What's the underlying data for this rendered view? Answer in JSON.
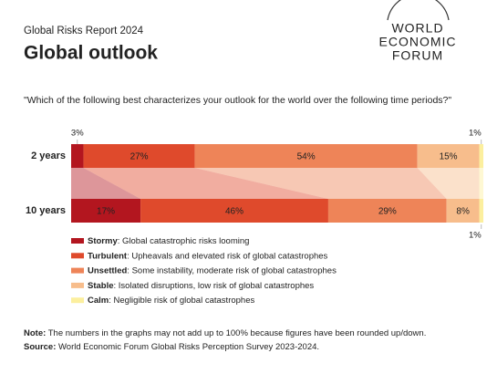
{
  "chart_data": {
    "type": "stacked-barh",
    "supertitle": "Global Risks Report 2024",
    "title": "Global outlook",
    "logo": [
      "WORLD",
      "ECONOMIC",
      "FORUM"
    ],
    "subtitle": "\"Which of the following best characterizes your outlook for the world over the following time periods?\"",
    "categories": [
      "2 years",
      "10 years"
    ],
    "series": [
      {
        "name": "Stormy",
        "description": ": Global catastrophic risks looming",
        "color": "#b3161f",
        "label_color": "#f2b6a6",
        "values": [
          3,
          17
        ],
        "value_labels": [
          "3%",
          "17%"
        ]
      },
      {
        "name": "Turbulent",
        "description": ": Upheavals and elevated risk of global catastrophes",
        "color": "#df4a2c",
        "label_color": "#f6c2ad",
        "values": [
          27,
          46
        ],
        "value_labels": [
          "27%",
          "46%"
        ]
      },
      {
        "name": "Unsettled",
        "description": ": Some instability, moderate risk of global catastrophes",
        "color": "#ee8458",
        "label_color": "#fbd6c2",
        "values": [
          54,
          29
        ],
        "value_labels": [
          "54%",
          "29%"
        ]
      },
      {
        "name": "Stable",
        "description": ": Isolated disruptions, low risk of global catastrophes",
        "color": "#f7bd8c",
        "label_color": "#555555",
        "values": [
          15,
          8
        ],
        "value_labels": [
          "15%",
          "8%"
        ]
      },
      {
        "name": "Calm",
        "description": ": Negligible risk of global catastrophes",
        "color": "#fcef9e",
        "label_color": "#555555",
        "values": [
          1,
          1
        ],
        "value_labels": [
          "1%",
          "1%"
        ]
      }
    ],
    "note_label": "Note:",
    "note": " The numbers in the graphs may not add up to 100% because figures have been rounded up/down.",
    "source_label": "Source:",
    "source": " World Economic Forum Global Risks Perception Survey 2023-2024."
  }
}
